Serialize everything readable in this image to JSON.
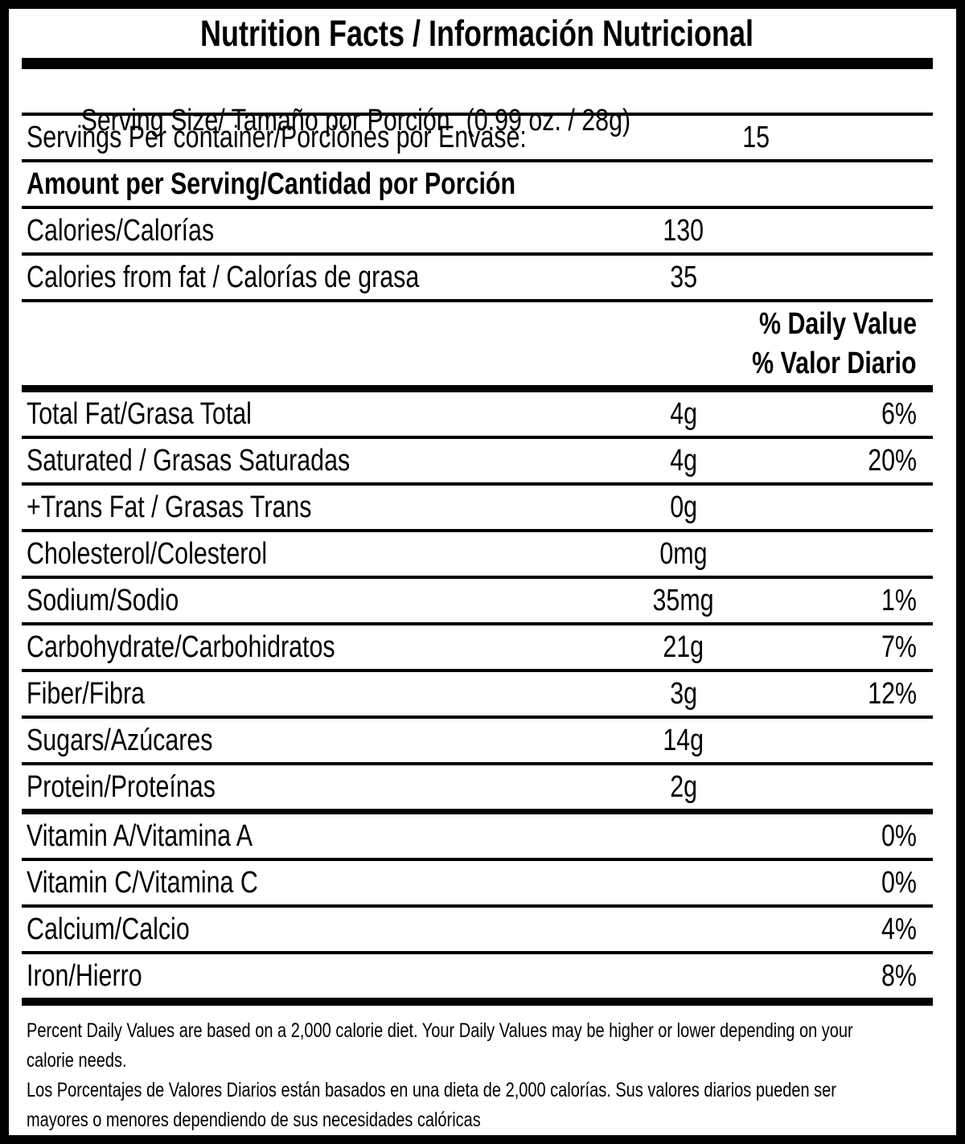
{
  "label": {
    "title": "Nutrition Facts / Información Nutricional",
    "serving_size": {
      "label": "Serving Size/ Tamaño por Porción",
      "value": "(0.99 oz. / 28g)"
    },
    "servings_per_container": {
      "label": "Servings Per container/Porciónes por Envase:",
      "value": "15"
    },
    "section_header": "Amount per Serving/Cantidad por Porción",
    "calories": {
      "label": "Calories/Calorías",
      "value": "130"
    },
    "calories_from_fat": {
      "label": "Calories from fat / Calorías de grasa",
      "value": "35"
    },
    "daily_value_header": {
      "en": "% Daily Value",
      "es": "% Valor Diario"
    },
    "nutrients": [
      {
        "label": "Total Fat/Grasa Total",
        "amount": "4g",
        "dv": "6%"
      },
      {
        "label": "Saturated / Grasas Saturadas",
        "amount": "4g",
        "dv": "20%"
      },
      {
        "label": "+Trans Fat / Grasas Trans",
        "amount": "0g",
        "dv": ""
      },
      {
        "label": "Cholesterol/Colesterol",
        "amount": "0mg",
        "dv": ""
      },
      {
        "label": "Sodium/Sodio",
        "amount": "35mg",
        "dv": "1%"
      },
      {
        "label": "Carbohydrate/Carbohidratos",
        "amount": "21g",
        "dv": "7%"
      },
      {
        "label": "Fiber/Fibra",
        "amount": "3g",
        "dv": "12%"
      },
      {
        "label": "Sugars/Azúcares",
        "amount": "14g",
        "dv": ""
      },
      {
        "label": "Protein/Proteínas",
        "amount": "2g",
        "dv": ""
      },
      {
        "label": "Vitamin A/Vitamina A",
        "amount": "",
        "dv": "0%"
      },
      {
        "label": "Vitamin C/Vitamina C",
        "amount": "",
        "dv": "0%"
      },
      {
        "label": "Calcium/Calcio",
        "amount": "",
        "dv": "4%"
      },
      {
        "label": "Iron/Hierro",
        "amount": "",
        "dv": "8%"
      }
    ],
    "footnote": {
      "en_lines": [
        "Percent Daily Values are based on a 2,000 calorie diet. Your Daily Values may be higher or lower depending on your",
        "calorie needs."
      ],
      "es_lines": [
        "Los Porcentajes de Valores Diarios están basados en una dieta de 2,000 calorías. Sus valores diarios pueden ser",
        "mayores o menores dependiendo de sus necesidades calóricas"
      ]
    },
    "colors": {
      "ink": "#000000",
      "paper": "#ffffff"
    }
  }
}
